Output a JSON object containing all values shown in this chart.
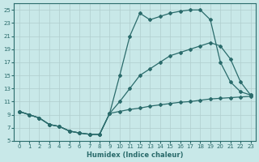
{
  "xlabel": "Humidex (Indice chaleur)",
  "bg_color": "#c8e8e8",
  "grid_color": "#b0cece",
  "line_color": "#2a6b6b",
  "xlim": [
    -0.5,
    23.5
  ],
  "ylim": [
    5,
    26
  ],
  "yticks": [
    5,
    7,
    9,
    11,
    13,
    15,
    17,
    19,
    21,
    23,
    25
  ],
  "xticks": [
    0,
    1,
    2,
    3,
    4,
    5,
    6,
    7,
    8,
    9,
    10,
    11,
    12,
    13,
    14,
    15,
    16,
    17,
    18,
    19,
    20,
    21,
    22,
    23
  ],
  "series_min_x": [
    0,
    1,
    2,
    3,
    4,
    5,
    6,
    7,
    8,
    9,
    10,
    11,
    12,
    13,
    14,
    15,
    16,
    17,
    18,
    19,
    20,
    21,
    22,
    23
  ],
  "series_min_y": [
    9.5,
    9.0,
    8.5,
    7.5,
    7.2,
    6.5,
    6.2,
    6.0,
    6.0,
    9.2,
    9.5,
    9.8,
    10.0,
    10.3,
    10.5,
    10.7,
    10.9,
    11.0,
    11.2,
    11.4,
    11.5,
    11.6,
    11.7,
    11.8
  ],
  "series_mid_x": [
    0,
    1,
    2,
    3,
    4,
    5,
    6,
    7,
    8,
    9,
    10,
    11,
    12,
    13,
    14,
    15,
    16,
    17,
    18,
    19,
    20,
    21,
    22,
    23
  ],
  "series_mid_y": [
    9.5,
    9.0,
    8.5,
    7.5,
    7.2,
    6.5,
    6.2,
    6.0,
    6.0,
    9.2,
    11.0,
    13.0,
    15.0,
    16.0,
    17.0,
    18.0,
    18.5,
    19.0,
    19.5,
    20.0,
    19.5,
    17.5,
    14.0,
    12.0
  ],
  "series_max_x": [
    0,
    1,
    2,
    3,
    4,
    5,
    6,
    7,
    8,
    9,
    10,
    11,
    12,
    13,
    14,
    15,
    16,
    17,
    18,
    19,
    20,
    21,
    22,
    23
  ],
  "series_max_y": [
    9.5,
    9.0,
    8.5,
    7.5,
    7.2,
    6.5,
    6.2,
    6.0,
    6.0,
    9.2,
    15.0,
    21.0,
    24.5,
    23.5,
    24.0,
    24.5,
    24.8,
    25.0,
    25.0,
    23.5,
    17.0,
    14.0,
    12.5,
    12.0
  ]
}
